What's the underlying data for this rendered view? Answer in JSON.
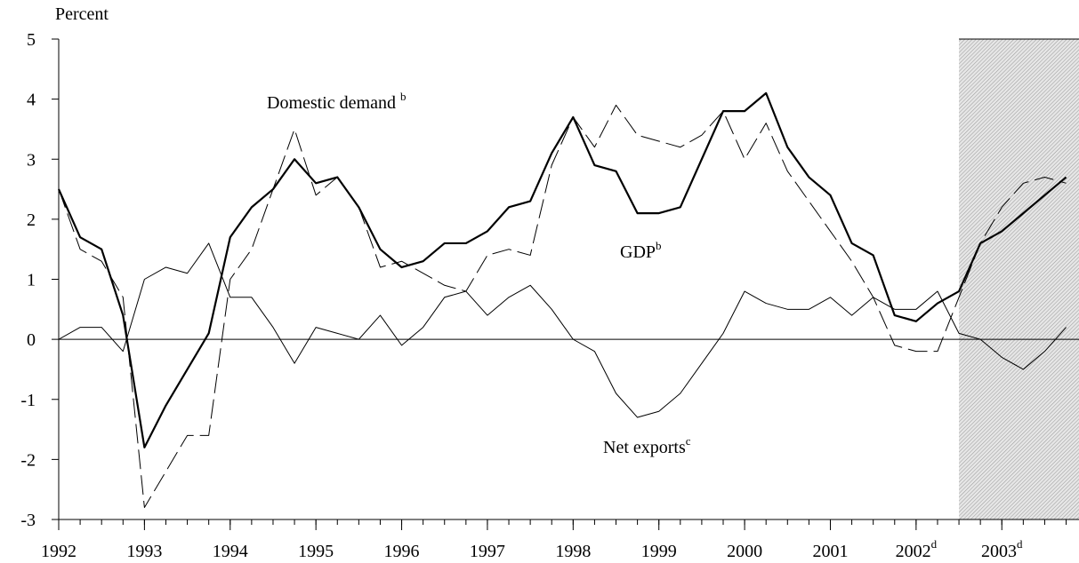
{
  "chart_data": {
    "type": "line",
    "y_axis_label": "Percent",
    "x": [
      1992,
      1992.25,
      1992.5,
      1992.75,
      1993,
      1993.25,
      1993.5,
      1993.75,
      1994,
      1994.25,
      1994.5,
      1994.75,
      1995,
      1995.25,
      1995.5,
      1995.75,
      1996,
      1996.25,
      1996.5,
      1996.75,
      1997,
      1997.25,
      1997.5,
      1997.75,
      1998,
      1998.25,
      1998.5,
      1998.75,
      1999,
      1999.25,
      1999.5,
      1999.75,
      2000,
      2000.25,
      2000.5,
      2000.75,
      2001,
      2001.25,
      2001.5,
      2001.75,
      2002,
      2002.25,
      2002.5,
      2002.75,
      2003,
      2003.25,
      2003.5,
      2003.75
    ],
    "series": [
      {
        "name": "GDP",
        "superscript": "b",
        "color": "#000000",
        "style": "thick",
        "values": [
          2.5,
          1.7,
          1.5,
          0.4,
          -1.8,
          -1.1,
          -0.5,
          0.1,
          1.7,
          2.2,
          2.5,
          3.0,
          2.6,
          2.7,
          2.2,
          1.5,
          1.2,
          1.3,
          1.6,
          1.6,
          1.8,
          2.2,
          2.3,
          3.1,
          3.7,
          2.9,
          2.8,
          2.1,
          2.1,
          2.2,
          3.0,
          3.8,
          3.8,
          4.1,
          3.2,
          2.7,
          2.4,
          1.6,
          1.4,
          0.4,
          0.3,
          0.6,
          0.8,
          1.6,
          1.8,
          2.1,
          2.4,
          2.7
        ]
      },
      {
        "name": "Domestic demand",
        "superscript": "b",
        "color": "#000000",
        "style": "dashed",
        "values": [
          2.5,
          1.5,
          1.3,
          0.7,
          -2.8,
          -2.2,
          -1.6,
          -1.6,
          1.0,
          1.5,
          2.5,
          3.5,
          2.4,
          2.7,
          2.2,
          1.2,
          1.3,
          1.1,
          0.9,
          0.8,
          1.4,
          1.5,
          1.4,
          2.9,
          3.7,
          3.2,
          3.9,
          3.4,
          3.3,
          3.2,
          3.4,
          3.8,
          3.0,
          3.6,
          2.8,
          2.3,
          1.8,
          1.3,
          0.7,
          -0.1,
          -0.2,
          -0.2,
          0.7,
          1.6,
          2.2,
          2.6,
          2.7,
          2.6
        ]
      },
      {
        "name": "Net exports",
        "superscript": "c",
        "color": "#000000",
        "style": "thin",
        "values": [
          0.0,
          0.2,
          0.2,
          -0.2,
          1.0,
          1.2,
          1.1,
          1.6,
          0.7,
          0.7,
          0.2,
          -0.4,
          0.2,
          0.1,
          0.0,
          0.4,
          -0.1,
          0.2,
          0.7,
          0.8,
          0.4,
          0.7,
          0.9,
          0.5,
          0.0,
          -0.2,
          -0.9,
          -1.3,
          -1.2,
          -0.9,
          -0.4,
          0.1,
          0.8,
          0.6,
          0.5,
          0.5,
          0.7,
          0.4,
          0.7,
          0.5,
          0.5,
          0.8,
          0.1,
          0.0,
          -0.3,
          -0.5,
          -0.2,
          0.2
        ]
      }
    ],
    "xlim": [
      1992,
      2003.9
    ],
    "ylim": [
      -3,
      5
    ],
    "yticks": [
      -3,
      -2,
      -1,
      0,
      1,
      2,
      3,
      4,
      5
    ],
    "xticks": [
      1992,
      1993,
      1994,
      1995,
      1996,
      1997,
      1998,
      1999,
      2000,
      2001,
      {
        "value": 2002,
        "label": "2002",
        "superscript": "d"
      },
      {
        "value": 2003,
        "label": "2003",
        "superscript": "d"
      }
    ],
    "shaded_from": 2002.5
  }
}
